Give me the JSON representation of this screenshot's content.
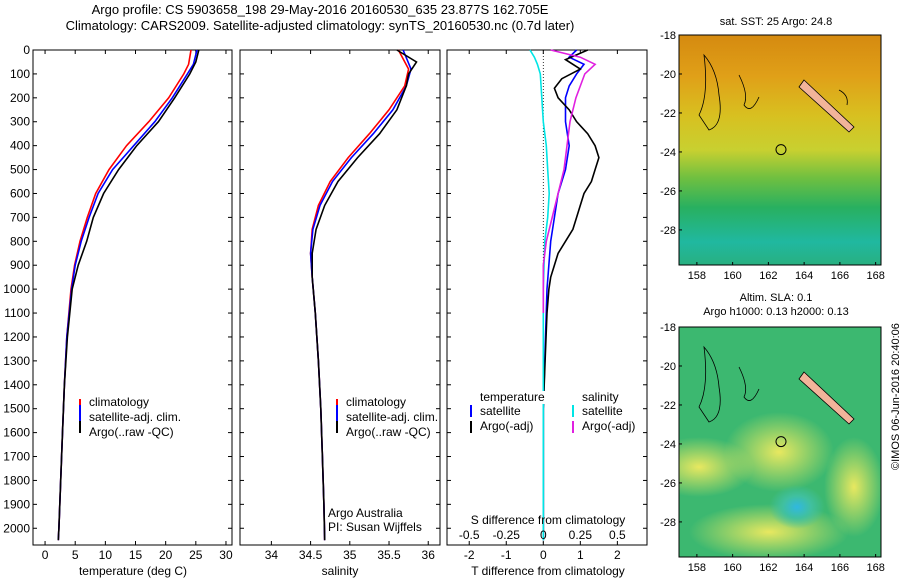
{
  "header": {
    "line1": "Argo profile: CS 5903658_198 29-May-2016 20160530_635 23.877S 162.705E",
    "line2": "Climatology: CARS2009. Satellite-adjusted climatology: synTS_20160530.nc (0.7d later)"
  },
  "footer_stamp": "©IMOS 06-Jun-2016 20:40:06",
  "colors": {
    "clim": "#ff0000",
    "sat": "#0000ff",
    "argo": "#000000",
    "sal_sat": "#00e5e5",
    "sal_argo": "#e020e0"
  },
  "chart_data": [
    {
      "type": "line",
      "id": "temperature",
      "xlabel": "temperature (deg C)",
      "xlim": [
        -2,
        31
      ],
      "xticks": [
        0,
        5,
        10,
        15,
        20,
        25,
        30
      ],
      "ylim": [
        2070,
        0
      ],
      "yticks": [
        0,
        100,
        200,
        300,
        400,
        500,
        600,
        700,
        800,
        900,
        1000,
        1100,
        1200,
        1300,
        1400,
        1500,
        1600,
        1700,
        1800,
        1900,
        2000
      ],
      "legend": [
        "climatology",
        "satellite-adj. clim.",
        "Argo(..raw -QC)"
      ],
      "series": [
        {
          "name": "climatology",
          "color": "#ff0000",
          "depth": [
            0,
            60,
            100,
            200,
            300,
            400,
            500,
            600,
            700,
            800,
            900,
            1000,
            1200,
            1400,
            1600,
            1800,
            2000,
            2050
          ],
          "values": [
            24.2,
            23.8,
            23.0,
            20.5,
            17.2,
            13.5,
            10.6,
            8.4,
            7.0,
            5.8,
            4.9,
            4.3,
            3.6,
            3.2,
            2.9,
            2.6,
            2.3,
            2.2
          ]
        },
        {
          "name": "satellite-adj. clim.",
          "color": "#0000ff",
          "depth": [
            0,
            60,
            100,
            200,
            300,
            400,
            500,
            600,
            700,
            800,
            900,
            1000,
            1200,
            1400,
            1600,
            1800,
            2000,
            2050
          ],
          "values": [
            25.2,
            24.6,
            23.6,
            21.1,
            18.2,
            14.7,
            11.2,
            8.8,
            7.3,
            6.0,
            5.0,
            4.4,
            3.6,
            3.2,
            2.9,
            2.6,
            2.3,
            2.2
          ]
        },
        {
          "name": "Argo(..raw -QC)",
          "color": "#000000",
          "depth": [
            0,
            50,
            100,
            200,
            300,
            400,
            500,
            600,
            700,
            800,
            900,
            1000,
            1200,
            1400,
            1600,
            1800,
            2000,
            2050
          ],
          "values": [
            25.5,
            25.0,
            24.0,
            21.5,
            18.8,
            15.2,
            12.2,
            9.7,
            8.0,
            6.9,
            5.5,
            4.5,
            3.7,
            3.2,
            2.9,
            2.6,
            2.3,
            2.2
          ]
        }
      ]
    },
    {
      "type": "line",
      "id": "salinity",
      "xlabel": "salinity",
      "xlim": [
        33.6,
        36.15
      ],
      "xticks": [
        34,
        34.5,
        35,
        35.5,
        36
      ],
      "ylim": [
        2070,
        0
      ],
      "legend": [
        "climatology",
        "satellite-adj. clim.",
        "Argo(..raw -QC)"
      ],
      "annotation": [
        "Argo Australia",
        "PI: Susan Wijffels"
      ],
      "series": [
        {
          "name": "climatology",
          "color": "#ff0000",
          "depth": [
            0,
            80,
            150,
            250,
            350,
            450,
            550,
            650,
            750,
            850,
            950,
            1100,
            1300,
            1500,
            1700,
            1900,
            2050
          ],
          "values": [
            35.62,
            35.75,
            35.7,
            35.5,
            35.25,
            34.98,
            34.75,
            34.6,
            34.52,
            34.5,
            34.52,
            34.56,
            34.6,
            34.63,
            34.65,
            34.67,
            34.68
          ]
        },
        {
          "name": "satellite-adj. clim.",
          "color": "#0000ff",
          "depth": [
            0,
            80,
            150,
            250,
            350,
            450,
            550,
            650,
            750,
            850,
            950,
            1100,
            1300,
            1500,
            1700,
            1900,
            2050
          ],
          "values": [
            35.68,
            35.78,
            35.72,
            35.55,
            35.3,
            35.02,
            34.78,
            34.62,
            34.53,
            34.5,
            34.52,
            34.56,
            34.6,
            34.63,
            34.65,
            34.67,
            34.68
          ]
        },
        {
          "name": "Argo(..raw -QC)",
          "color": "#000000",
          "depth": [
            0,
            50,
            100,
            150,
            250,
            350,
            450,
            550,
            650,
            750,
            850,
            950,
            1100,
            1300,
            1500,
            1700,
            1900,
            2050
          ],
          "values": [
            35.6,
            35.85,
            35.75,
            35.72,
            35.6,
            35.38,
            35.1,
            34.85,
            34.68,
            34.57,
            34.52,
            34.52,
            34.56,
            34.6,
            34.63,
            34.65,
            34.67,
            34.68
          ]
        }
      ]
    },
    {
      "type": "line",
      "id": "difference",
      "xlabel": "T difference from climatology",
      "top_label": "S difference from climatology",
      "xlim": [
        -2.6,
        2.8
      ],
      "xticks": [
        -2,
        -1,
        0,
        1,
        2
      ],
      "top_ticks": [
        -0.5,
        -0.25,
        0,
        0.25,
        0.5
      ],
      "ylim": [
        2070,
        0
      ],
      "legend_temperature": [
        "temperature",
        "satellite",
        "Argo(-adj)"
      ],
      "legend_salinity": [
        "salinity",
        "satellite",
        "Argo(-adj)"
      ],
      "series": [
        {
          "name": "temperature satellite",
          "color": "#0000ff",
          "depth": [
            0,
            30,
            60,
            100,
            150,
            200,
            300,
            400,
            500,
            600,
            800,
            1000,
            1500,
            2050
          ],
          "values": [
            0.9,
            0.7,
            1.1,
            0.9,
            0.7,
            0.6,
            0.6,
            0.7,
            0.6,
            0.4,
            0.2,
            0.1,
            0.0,
            0.0
          ]
        },
        {
          "name": "temperature Argo(-adj)",
          "color": "#000000",
          "depth": [
            0,
            40,
            80,
            120,
            160,
            200,
            250,
            300,
            350,
            400,
            450,
            500,
            550,
            600,
            650,
            700,
            750,
            800,
            850,
            900,
            950,
            1000,
            1100,
            1300,
            1500,
            1800,
            2050
          ],
          "values": [
            1.2,
            0.6,
            1.0,
            0.5,
            0.3,
            0.4,
            0.7,
            0.9,
            1.2,
            1.4,
            1.5,
            1.4,
            1.3,
            1.1,
            1.0,
            0.9,
            0.8,
            0.6,
            0.4,
            0.3,
            0.2,
            0.15,
            0.1,
            0.05,
            0.0,
            0.0,
            0.0
          ]
        },
        {
          "name": "salinity satellite",
          "color": "#00e5e5",
          "depth": [
            0,
            30,
            60,
            100,
            200,
            300,
            400,
            500,
            600,
            700,
            800,
            1000,
            1500,
            2050
          ],
          "values": [
            -0.09,
            -0.06,
            -0.04,
            -0.02,
            -0.01,
            0.0,
            0.02,
            0.03,
            0.04,
            0.03,
            0.01,
            0.0,
            0.0,
            0.0
          ]
        },
        {
          "name": "salinity Argo(-adj)",
          "color": "#e020e0",
          "depth": [
            0,
            30,
            60,
            100,
            200,
            300,
            400,
            500,
            600,
            700,
            800,
            900,
            1000,
            1100
          ],
          "values": [
            0.05,
            0.25,
            0.35,
            0.28,
            0.22,
            0.18,
            0.16,
            0.14,
            0.1,
            0.06,
            0.02,
            0.0,
            0.0,
            0.0
          ]
        }
      ]
    },
    {
      "type": "heatmap",
      "id": "sst_map",
      "title": "sat. SST: 25 Argo: 24.8",
      "xlim": [
        157,
        168.3
      ],
      "xticks": [
        158,
        160,
        162,
        164,
        166,
        168
      ],
      "ylim": [
        -29.8,
        -18
      ],
      "yticks": [
        -18,
        -20,
        -22,
        -24,
        -26,
        -28
      ],
      "float_position": [
        162.705,
        -23.877
      ]
    },
    {
      "type": "heatmap",
      "id": "sla_map",
      "title_line1": "Altim. SLA: 0.1",
      "title_line2": "Argo h1000: 0.13 h2000: 0.13",
      "xlim": [
        157,
        168.3
      ],
      "xticks": [
        158,
        160,
        162,
        164,
        166,
        168
      ],
      "ylim": [
        -29.8,
        -18
      ],
      "yticks": [
        -18,
        -20,
        -22,
        -24,
        -26,
        -28
      ],
      "float_position": [
        162.705,
        -23.877
      ]
    }
  ]
}
